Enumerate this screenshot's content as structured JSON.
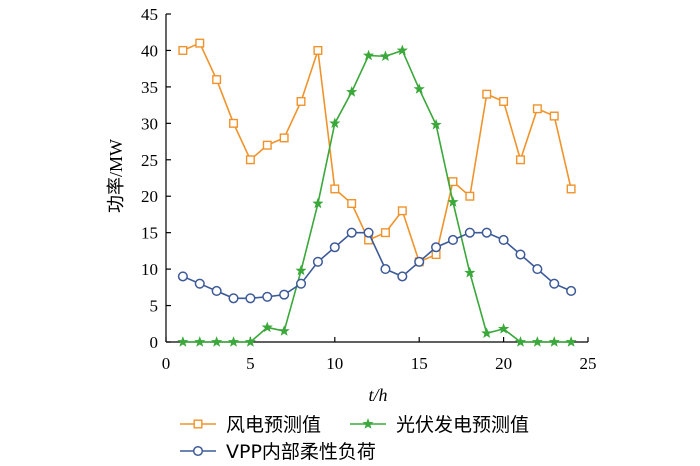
{
  "chart_data": {
    "type": "line",
    "xlabel": "t/h",
    "ylabel": "功率/MW",
    "xlim": [
      0,
      25
    ],
    "ylim": [
      0,
      45
    ],
    "xticks": [
      0,
      5,
      10,
      15,
      20,
      25
    ],
    "yticks": [
      0,
      5,
      10,
      15,
      20,
      25,
      30,
      35,
      40,
      45
    ],
    "grid": false,
    "legend_position": "bottom",
    "x": [
      1,
      2,
      3,
      4,
      5,
      6,
      7,
      8,
      9,
      10,
      11,
      12,
      13,
      14,
      15,
      16,
      17,
      18,
      19,
      20,
      21,
      22,
      23,
      24
    ],
    "series": [
      {
        "name": "风电预测值",
        "color": "#f0932b",
        "marker": "square",
        "values": [
          40,
          41,
          36,
          30,
          25,
          27,
          28,
          33,
          40,
          21,
          19,
          14,
          15,
          18,
          11,
          12,
          22,
          20,
          34,
          33,
          25,
          32,
          31,
          21
        ]
      },
      {
        "name": "光伏发电预测值",
        "color": "#3aa83a",
        "marker": "star",
        "values": [
          0,
          0,
          0,
          0,
          0,
          2,
          1.5,
          9.8,
          19,
          30,
          34.3,
          39.3,
          39.2,
          40,
          34.7,
          29.8,
          19.2,
          9.5,
          1.2,
          1.8,
          0,
          0,
          0,
          0
        ]
      },
      {
        "name": "VPP内部柔性负荷",
        "color": "#3d5a98",
        "marker": "circle",
        "values": [
          9,
          8,
          7,
          6,
          6,
          6.2,
          6.5,
          8,
          11,
          13,
          15,
          15,
          10,
          9,
          11,
          13,
          14,
          15,
          15,
          14,
          12,
          10,
          8,
          7
        ]
      }
    ]
  }
}
